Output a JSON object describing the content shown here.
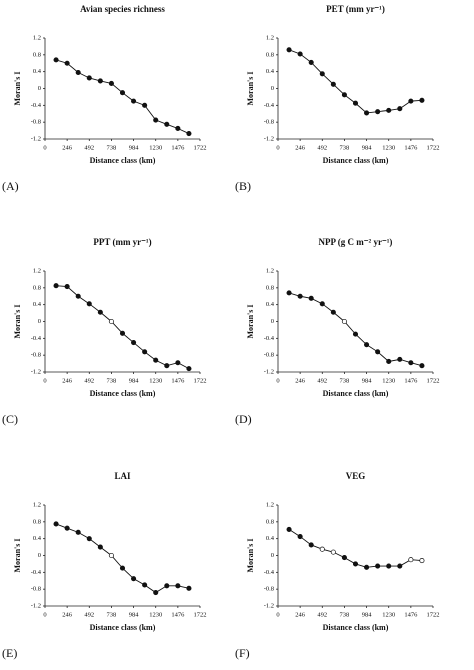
{
  "chart_data": [
    {
      "type": "line",
      "title": "Avian species richness",
      "panel_label": "(A)",
      "xlabel": "Distance class (km)",
      "ylabel": "Moran's I",
      "x": [
        123,
        246,
        369,
        492,
        615,
        738,
        861,
        984,
        1107,
        1230,
        1353,
        1476,
        1599
      ],
      "values": [
        0.68,
        0.6,
        0.38,
        0.25,
        0.18,
        0.12,
        -0.1,
        -0.3,
        -0.4,
        -0.75,
        -0.85,
        -0.95,
        -1.07
      ],
      "filled": [
        true,
        true,
        true,
        true,
        true,
        true,
        true,
        true,
        true,
        true,
        true,
        true,
        true
      ],
      "xlim": [
        0,
        1722
      ],
      "xticks": [
        0,
        246,
        492,
        738,
        984,
        1230,
        1476,
        1722
      ],
      "ylim": [
        -1.2,
        1.2
      ],
      "yticks": [
        -1.2,
        -0.8,
        -0.4,
        0,
        0.4,
        0.8,
        1.2
      ],
      "color": "#111111"
    },
    {
      "type": "line",
      "title": "PET (mm yr⁻¹)",
      "panel_label": "(B)",
      "xlabel": "Distance class (km)",
      "ylabel": "Moran's I",
      "x": [
        123,
        246,
        369,
        492,
        615,
        738,
        861,
        984,
        1107,
        1230,
        1353,
        1476,
        1599
      ],
      "values": [
        0.92,
        0.82,
        0.62,
        0.35,
        0.1,
        -0.15,
        -0.35,
        -0.58,
        -0.55,
        -0.52,
        -0.48,
        -0.3,
        -0.28
      ],
      "filled": [
        true,
        true,
        true,
        true,
        true,
        true,
        true,
        true,
        true,
        true,
        true,
        true,
        true
      ],
      "xlim": [
        0,
        1722
      ],
      "xticks": [
        0,
        246,
        492,
        738,
        984,
        1230,
        1476,
        1722
      ],
      "ylim": [
        -1.2,
        1.2
      ],
      "yticks": [
        -1.2,
        -0.8,
        -0.4,
        0,
        0.4,
        0.8,
        1.2
      ],
      "color": "#111111"
    },
    {
      "type": "line",
      "title": "PPT (mm yr⁻¹)",
      "panel_label": "(C)",
      "xlabel": "Distance class (km)",
      "ylabel": "Moran's I",
      "x": [
        123,
        246,
        369,
        492,
        615,
        738,
        861,
        984,
        1107,
        1230,
        1353,
        1476,
        1599
      ],
      "values": [
        0.85,
        0.83,
        0.6,
        0.42,
        0.22,
        0.0,
        -0.28,
        -0.5,
        -0.72,
        -0.92,
        -1.05,
        -0.98,
        -1.12
      ],
      "filled": [
        true,
        true,
        true,
        true,
        true,
        false,
        true,
        true,
        true,
        true,
        true,
        true,
        true
      ],
      "xlim": [
        0,
        1722
      ],
      "xticks": [
        0,
        246,
        492,
        738,
        984,
        1230,
        1476,
        1722
      ],
      "ylim": [
        -1.2,
        1.2
      ],
      "yticks": [
        -1.2,
        -0.8,
        -0.4,
        0,
        0.4,
        0.8,
        1.2
      ],
      "color": "#111111"
    },
    {
      "type": "line",
      "title": "NPP (g C m⁻² yr⁻¹)",
      "panel_label": "(D)",
      "xlabel": "Distance class (km)",
      "ylabel": "Moran's I",
      "x": [
        123,
        246,
        369,
        492,
        615,
        738,
        861,
        984,
        1107,
        1230,
        1353,
        1476,
        1599
      ],
      "values": [
        0.68,
        0.6,
        0.55,
        0.42,
        0.22,
        0.0,
        -0.3,
        -0.55,
        -0.72,
        -0.95,
        -0.9,
        -0.98,
        -1.05
      ],
      "filled": [
        true,
        true,
        true,
        true,
        true,
        false,
        true,
        true,
        true,
        true,
        true,
        true,
        true
      ],
      "xlim": [
        0,
        1722
      ],
      "xticks": [
        0,
        246,
        492,
        738,
        984,
        1230,
        1476,
        1722
      ],
      "ylim": [
        -1.2,
        1.2
      ],
      "yticks": [
        -1.2,
        -0.8,
        -0.4,
        0,
        0.4,
        0.8,
        1.2
      ],
      "color": "#111111"
    },
    {
      "type": "line",
      "title": "LAI",
      "panel_label": "(E)",
      "xlabel": "Distance class (km)",
      "ylabel": "Moran's I",
      "x": [
        123,
        246,
        369,
        492,
        615,
        738,
        861,
        984,
        1107,
        1230,
        1353,
        1476,
        1599
      ],
      "values": [
        0.75,
        0.65,
        0.55,
        0.4,
        0.2,
        0.0,
        -0.3,
        -0.55,
        -0.7,
        -0.88,
        -0.72,
        -0.72,
        -0.78
      ],
      "filled": [
        true,
        true,
        true,
        true,
        true,
        false,
        true,
        true,
        true,
        true,
        true,
        true,
        true
      ],
      "xlim": [
        0,
        1722
      ],
      "xticks": [
        0,
        246,
        492,
        738,
        984,
        1230,
        1476,
        1722
      ],
      "ylim": [
        -1.2,
        1.2
      ],
      "yticks": [
        -1.2,
        -0.8,
        -0.4,
        0,
        0.4,
        0.8,
        1.2
      ],
      "color": "#111111"
    },
    {
      "type": "line",
      "title": "VEG",
      "panel_label": "(F)",
      "xlabel": "Distance class (km)",
      "ylabel": "Moran's I",
      "x": [
        123,
        246,
        369,
        492,
        615,
        738,
        861,
        984,
        1107,
        1230,
        1353,
        1476,
        1599
      ],
      "values": [
        0.62,
        0.45,
        0.25,
        0.15,
        0.08,
        -0.05,
        -0.2,
        -0.28,
        -0.25,
        -0.25,
        -0.25,
        -0.1,
        -0.12
      ],
      "filled": [
        true,
        true,
        true,
        false,
        false,
        true,
        true,
        true,
        true,
        true,
        true,
        false,
        false
      ],
      "xlim": [
        0,
        1722
      ],
      "xticks": [
        0,
        246,
        492,
        738,
        984,
        1230,
        1476,
        1722
      ],
      "ylim": [
        -1.2,
        1.2
      ],
      "yticks": [
        -1.2,
        -0.8,
        -0.4,
        0,
        0.4,
        0.8,
        1.2
      ],
      "color": "#111111"
    }
  ]
}
